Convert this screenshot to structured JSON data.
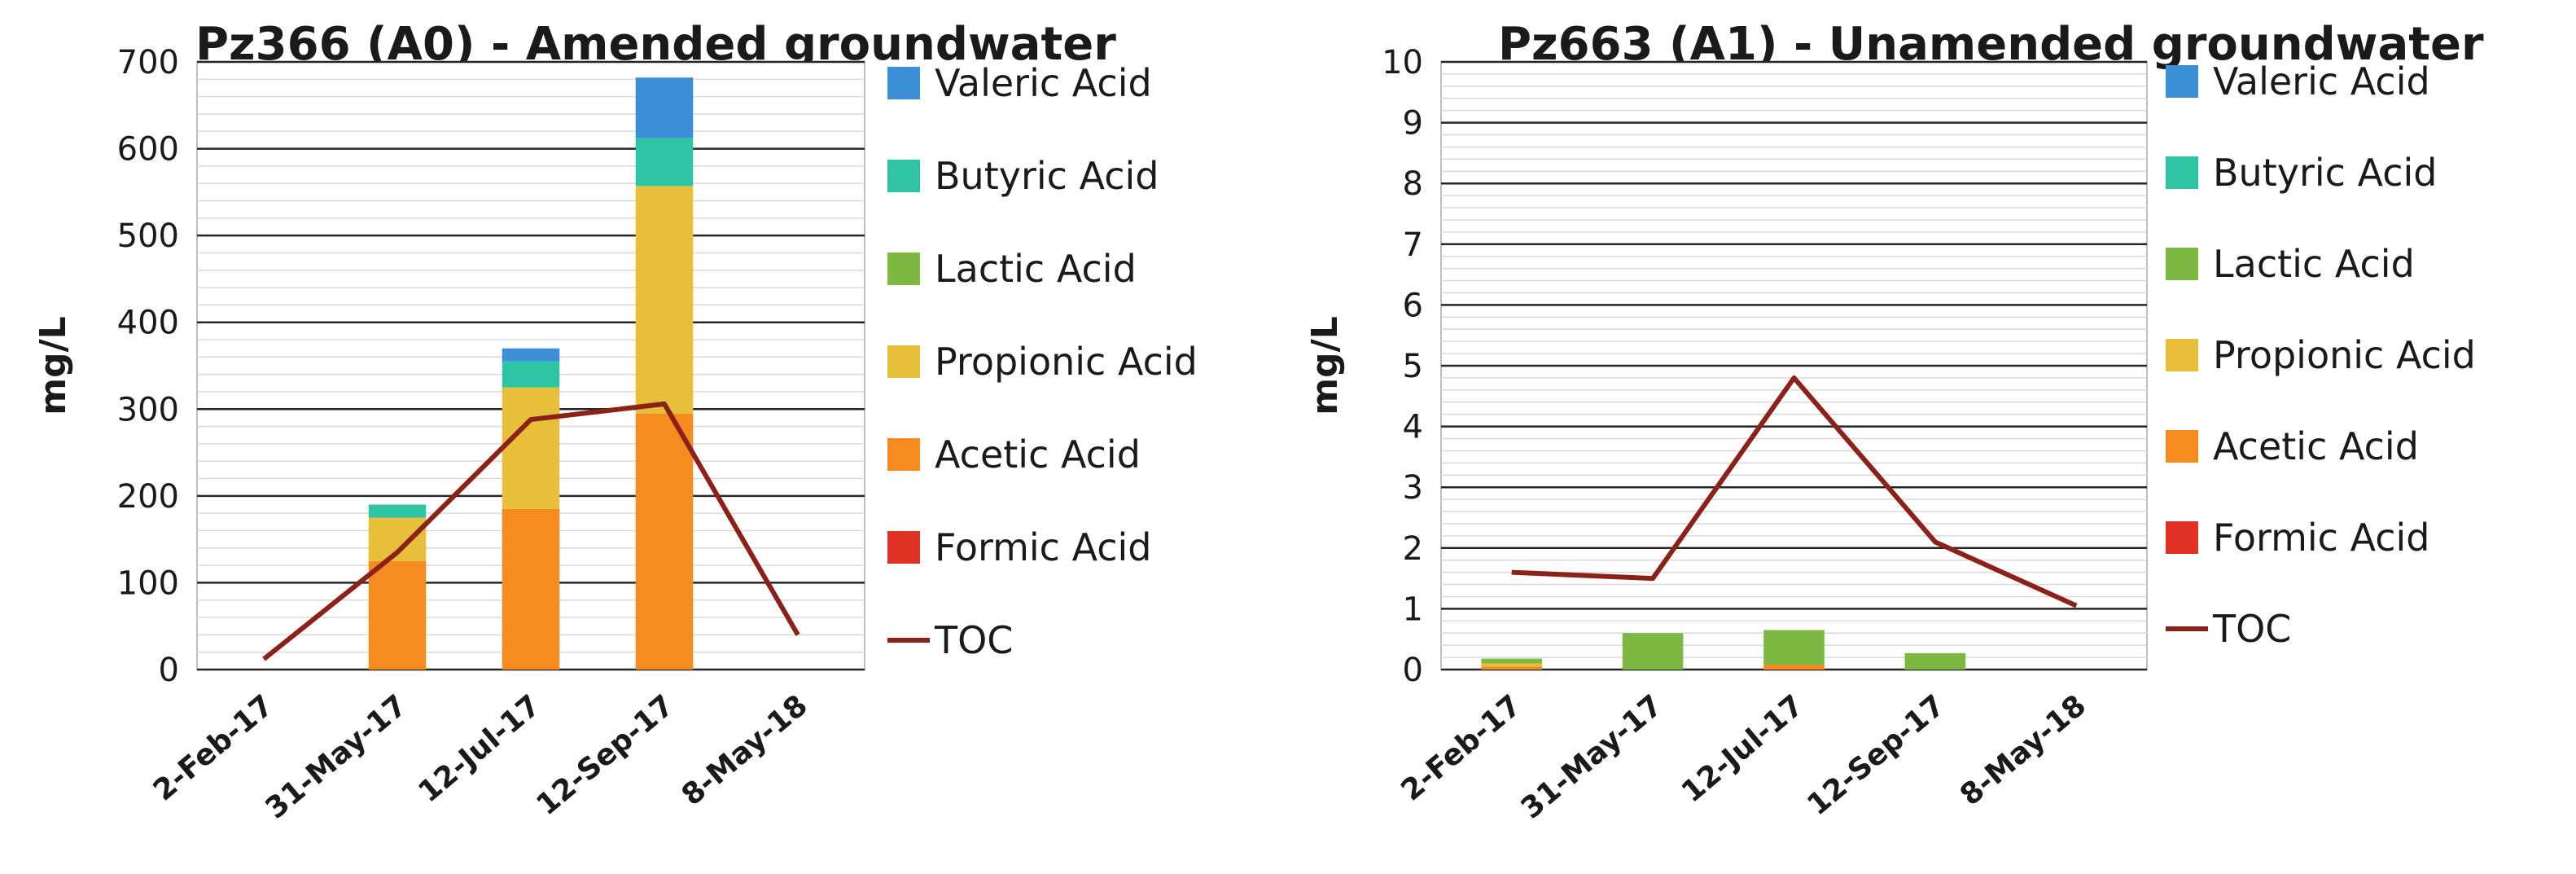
{
  "chart_data": [
    {
      "type": "bar",
      "stacked": true,
      "title": "Pz366 (A0) - Amended groundwater",
      "xlabel": "",
      "ylabel": "mg/L",
      "ylim": [
        0,
        700
      ],
      "yticks": [
        0,
        100,
        200,
        300,
        400,
        500,
        600,
        700
      ],
      "grid": true,
      "legend_placement": "right",
      "categories": [
        "2-Feb-17",
        "31-May-17",
        "12-Jul-17",
        "12-Sep-17",
        "8-May-18"
      ],
      "series": [
        {
          "name": "Formic Acid",
          "color": "#e03127",
          "values": [
            0,
            0,
            0,
            0,
            0
          ]
        },
        {
          "name": "Acetic Acid",
          "color": "#f68b1f",
          "values": [
            0,
            125,
            185,
            295,
            0
          ]
        },
        {
          "name": "Propionic Acid",
          "color": "#e8bf3a",
          "values": [
            0,
            50,
            140,
            262,
            0
          ]
        },
        {
          "name": "Lactic Acid",
          "color": "#7db843",
          "values": [
            0,
            0,
            0,
            0,
            0
          ]
        },
        {
          "name": "Butyric Acid",
          "color": "#2ec4a4",
          "values": [
            0,
            15,
            30,
            55,
            0
          ]
        },
        {
          "name": "Valeric Acid",
          "color": "#3d8fd6",
          "values": [
            0,
            0,
            15,
            70,
            0
          ]
        }
      ],
      "line": {
        "name": "TOC",
        "color": "#8b2119",
        "values": [
          12,
          135,
          288,
          306,
          40
        ]
      },
      "legend_order": [
        "Valeric Acid",
        "Butyric Acid",
        "Lactic Acid",
        "Propionic Acid",
        "Acetic Acid",
        "Formic Acid",
        "TOC"
      ]
    },
    {
      "type": "bar",
      "stacked": true,
      "title": "Pz663 (A1) - Unamended groundwater",
      "xlabel": "",
      "ylabel": "mg/L",
      "ylim": [
        0,
        10
      ],
      "yticks": [
        0,
        1,
        2,
        3,
        4,
        5,
        6,
        7,
        8,
        9,
        10
      ],
      "grid": true,
      "legend_placement": "right",
      "categories": [
        "2-Feb-17",
        "31-May-17",
        "12-Jul-17",
        "12-Sep-17",
        "8-May-18"
      ],
      "series": [
        {
          "name": "Formic Acid",
          "color": "#e03127",
          "values": [
            0,
            0,
            0,
            0,
            0
          ]
        },
        {
          "name": "Acetic Acid",
          "color": "#f68b1f",
          "values": [
            0.05,
            0,
            0.08,
            0,
            0
          ]
        },
        {
          "name": "Propionic Acid",
          "color": "#e8bf3a",
          "values": [
            0.05,
            0,
            0,
            0,
            0
          ]
        },
        {
          "name": "Lactic Acid",
          "color": "#7db843",
          "values": [
            0.08,
            0.6,
            0.57,
            0.27,
            0
          ]
        },
        {
          "name": "Butyric Acid",
          "color": "#2ec4a4",
          "values": [
            0,
            0,
            0,
            0,
            0
          ]
        },
        {
          "name": "Valeric Acid",
          "color": "#3d8fd6",
          "values": [
            0,
            0,
            0,
            0,
            0
          ]
        }
      ],
      "line": {
        "name": "TOC",
        "color": "#8b2119",
        "values": [
          1.6,
          1.5,
          4.8,
          2.1,
          1.05
        ]
      },
      "legend_order": [
        "Valeric Acid",
        "Butyric Acid",
        "Lactic Acid",
        "Propionic Acid",
        "Acetic Acid",
        "Formic Acid",
        "TOC"
      ]
    }
  ]
}
